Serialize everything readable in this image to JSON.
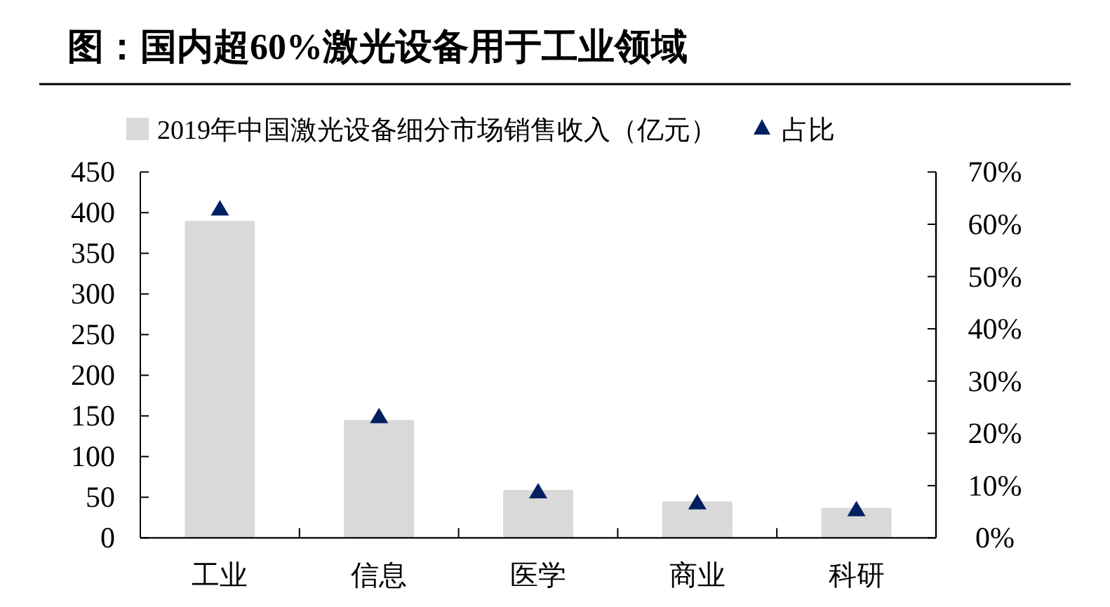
{
  "chart_data": {
    "type": "bar",
    "title": "图：国内超60%激光设备用于工业领域",
    "categories": [
      "工业",
      "信息",
      "医学",
      "商业",
      "科研"
    ],
    "series": [
      {
        "name": "2019年中国激光设备细分市场销售收入（亿元）",
        "color": "#d9d9d9",
        "values": [
          390,
          145,
          59,
          45,
          37
        ]
      },
      {
        "name": "占比",
        "type": "scatter",
        "axis": "y2",
        "marker": "triangle",
        "color": "#002060",
        "values": [
          63,
          23.3,
          8.9,
          6.8,
          5.5
        ]
      }
    ],
    "ylim": [
      0,
      450
    ],
    "yticks": [
      0,
      50,
      100,
      150,
      200,
      250,
      300,
      350,
      400,
      450
    ],
    "y2lim": [
      0,
      70
    ],
    "y2ticks": [
      {
        "value": 0,
        "label": "0%"
      },
      {
        "value": 10,
        "label": "10%"
      },
      {
        "value": 20,
        "label": "20%"
      },
      {
        "value": 30,
        "label": "30%"
      },
      {
        "value": 40,
        "label": "40%"
      },
      {
        "value": 50,
        "label": "50%"
      },
      {
        "value": 60,
        "label": "60%"
      },
      {
        "value": 70,
        "label": "70%"
      }
    ],
    "legend": "top",
    "grid": false
  }
}
